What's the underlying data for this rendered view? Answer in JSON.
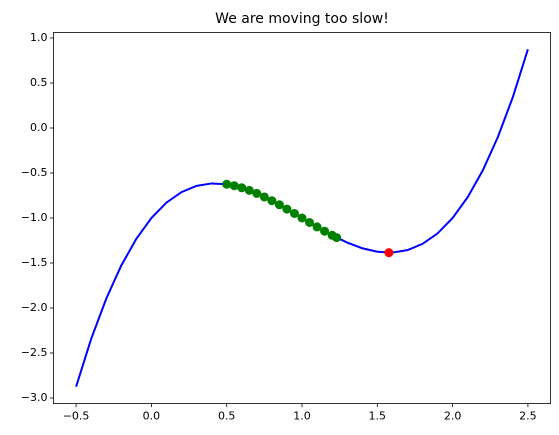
{
  "chart_data": {
    "type": "line",
    "title": "We are moving too slow!",
    "xlim": [
      -0.65,
      2.65
    ],
    "ylim": [
      -3.0625,
      1.0625
    ],
    "xticks": [
      {
        "value": -0.5,
        "label": "−0.5"
      },
      {
        "value": 0,
        "label": "0.0"
      },
      {
        "value": 0.5,
        "label": "0.5"
      },
      {
        "value": 1,
        "label": "1.0"
      },
      {
        "value": 1.5,
        "label": "1.5"
      },
      {
        "value": 2,
        "label": "2.0"
      },
      {
        "value": 2.5,
        "label": "2.5"
      }
    ],
    "yticks": [
      {
        "value": -3,
        "label": "−3.0"
      },
      {
        "value": -2.5,
        "label": "−2.5"
      },
      {
        "value": -2,
        "label": "−2.0"
      },
      {
        "value": -1.5,
        "label": "−1.5"
      },
      {
        "value": -1,
        "label": "−1.0"
      },
      {
        "value": -0.5,
        "label": "−0.5"
      },
      {
        "value": 0,
        "label": "0.0"
      },
      {
        "value": 0.5,
        "label": "0.5"
      },
      {
        "value": 1,
        "label": "1.0"
      }
    ],
    "grid": false,
    "series": [
      {
        "kind": "line",
        "color": "#0000ff",
        "x": [
          -0.5,
          -0.4,
          -0.3,
          -0.2,
          -0.1,
          0,
          0.1,
          0.2,
          0.3,
          0.4,
          0.5,
          0.6,
          0.7,
          0.8,
          0.9,
          1.0,
          1.1,
          1.2,
          1.3,
          1.4,
          1.5,
          1.6,
          1.7,
          1.8,
          1.9,
          2.0,
          2.1,
          2.2,
          2.3,
          2.4,
          2.5
        ],
        "values": [
          -2.875,
          -2.344,
          -1.897,
          -1.528,
          -1.231,
          -1,
          -0.829,
          -0.712,
          -0.643,
          -0.616,
          -0.625,
          -0.664,
          -0.727,
          -0.808,
          -0.901,
          -1,
          -1.099,
          -1.192,
          -1.273,
          -1.336,
          -1.375,
          -1.384,
          -1.357,
          -1.288,
          -1.171,
          -1,
          -0.769,
          -0.472,
          -0.103,
          0.344,
          0.875
        ]
      },
      {
        "kind": "points",
        "color": "#008000",
        "x": [
          0.5,
          0.55,
          0.6,
          0.65,
          0.7,
          0.75,
          0.8,
          0.85,
          0.9,
          0.95,
          1.0,
          1.05,
          1.1,
          1.15,
          1.2,
          1.23
        ],
        "values": [
          -0.625,
          -0.641,
          -0.664,
          -0.693,
          -0.727,
          -0.766,
          -0.808,
          -0.853,
          -0.901,
          -0.95,
          -1,
          -1.05,
          -1.099,
          -1.147,
          -1.192,
          -1.218
        ]
      },
      {
        "kind": "points",
        "color": "#ff0000",
        "x": [
          1.577
        ],
        "values": [
          -1.385
        ]
      }
    ]
  }
}
